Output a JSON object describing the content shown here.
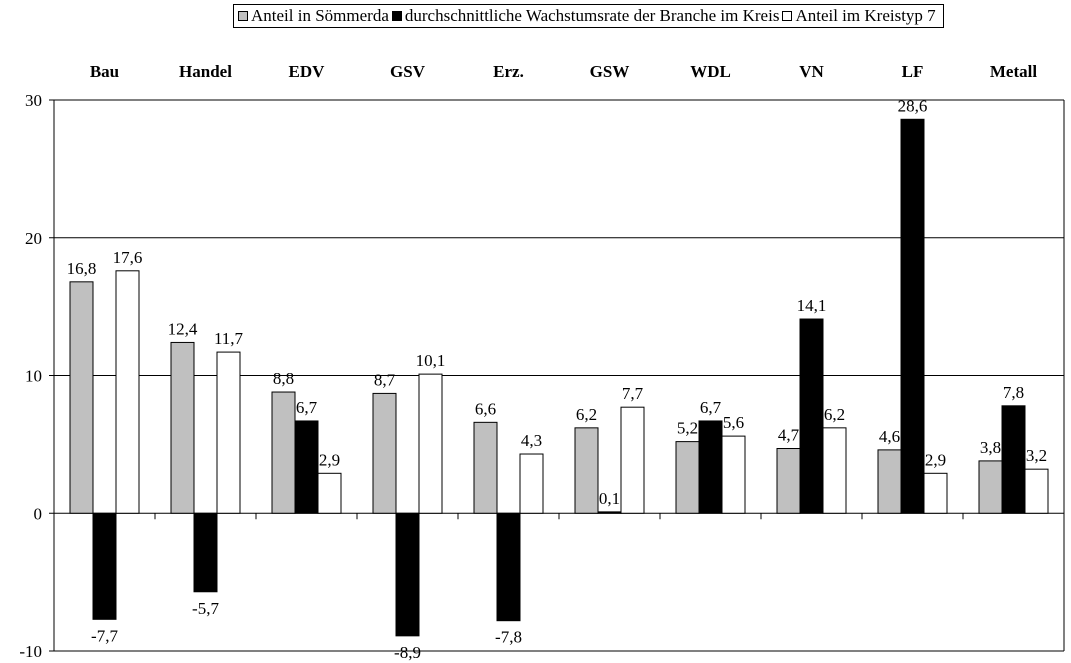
{
  "chart_data": {
    "type": "bar",
    "categories": [
      "Bau",
      "Handel",
      "EDV",
      "GSV",
      "Erz.",
      "GSW",
      "WDL",
      "VN",
      "LF",
      "Metall"
    ],
    "series": [
      {
        "name": "Anteil in Sömmerda",
        "color": "#c0c0c0",
        "values": [
          16.8,
          12.4,
          8.8,
          8.7,
          6.6,
          6.2,
          5.2,
          4.7,
          4.6,
          3.8
        ],
        "labels": [
          "16,8",
          "12,4",
          "8,8",
          "8,7",
          "6,6",
          "6,2",
          "5,2",
          "4,7",
          "4,6",
          "3,8"
        ]
      },
      {
        "name": "durchschnittliche Wachstumsrate der Branche im Kreis",
        "color": "#000000",
        "values": [
          -7.7,
          -5.7,
          6.7,
          -8.9,
          -7.8,
          0.1,
          6.7,
          14.1,
          28.6,
          7.8
        ],
        "labels": [
          "-7,7",
          "-5,7",
          "6,7",
          "-8,9",
          "-7,8",
          "0,1",
          "6,7",
          "14,1",
          "28,6",
          "7,8"
        ]
      },
      {
        "name": "Anteil im Kreistyp 7",
        "color": "#ffffff",
        "values": [
          17.6,
          11.7,
          2.9,
          10.1,
          4.3,
          7.7,
          5.6,
          6.2,
          2.9,
          3.2
        ],
        "labels": [
          "17,6",
          "11,7",
          "2,9",
          "10,1",
          "4,3",
          "7,7",
          "5,6",
          "6,2",
          "2,9",
          "3,2"
        ]
      }
    ],
    "ylim": [
      -10,
      30
    ],
    "yticks": [
      -10,
      0,
      10,
      20,
      30
    ],
    "ytick_labels": [
      "-10",
      "0",
      "10",
      "20",
      "30"
    ],
    "grid": "horizontal",
    "category_labels_position": "top",
    "legend_position": "top"
  }
}
